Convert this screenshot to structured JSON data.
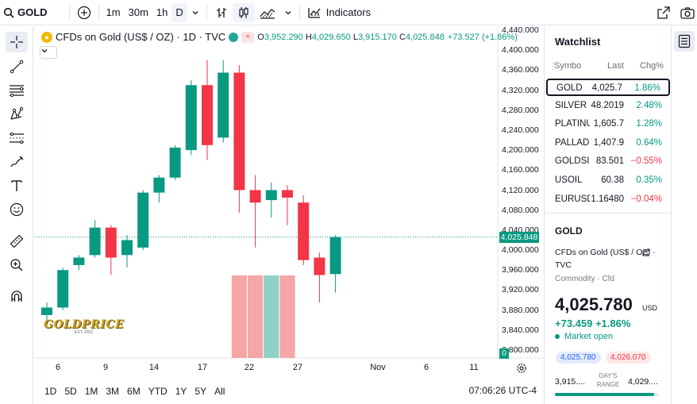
{
  "toolbar": {
    "symbol": "GOLD",
    "intervals": [
      "1m",
      "30m",
      "1h",
      "D"
    ],
    "active_interval": "D",
    "indicators_label": "Indicators"
  },
  "legend": {
    "title": "CFDs on Gold (US$ / OZ) · 1D · TVC",
    "badge_text": "≈",
    "open_label": "O",
    "open": "3,952.290",
    "high_label": "H",
    "high": "4,029.650",
    "low_label": "L",
    "low": "3,915.170",
    "close_label": "C",
    "close": "4,025.848",
    "change": "+73.527 (+1.86%)"
  },
  "price_axis": {
    "labels": [
      "4,440.000",
      "4,400.000",
      "4,360.000",
      "4,320.000",
      "4,280.000",
      "4,240.000",
      "4,200.000",
      "4,160.000",
      "4,120.000",
      "4,080.000",
      "4,040.000",
      "4,000.000",
      "3,960.000",
      "3,920.000",
      "3,880.000",
      "3,840.000",
      "3,800.000"
    ],
    "current_price": "4,025.848",
    "volume_badge": "0"
  },
  "time_axis": {
    "labels": [
      "6",
      "9",
      "14",
      "17",
      "22",
      "27",
      "Nov",
      "6",
      "11"
    ]
  },
  "watermark": {
    "main": "GOLDPRICE",
    "sub": "EST. 2002"
  },
  "bottombar": {
    "ranges": [
      "1D",
      "5D",
      "1M",
      "3M",
      "6M",
      "YTD",
      "1Y",
      "5Y",
      "All"
    ],
    "clock": "07:06:26 UTC-4"
  },
  "watchlist": {
    "title": "Watchlist",
    "col_symbol": "Symbo",
    "col_last": "Last",
    "col_chg": "Chg%",
    "rows": [
      {
        "symbol": "GOLD",
        "last": "4,025.7",
        "chg": "1.86%",
        "dir": "up"
      },
      {
        "symbol": "SILVER",
        "last": "48.2019",
        "chg": "2.48%",
        "dir": "up"
      },
      {
        "symbol": "PLATINUM",
        "last": "1,605.7",
        "chg": "1.28%",
        "dir": "up"
      },
      {
        "symbol": "PALLADIUM",
        "last": "1,407.9",
        "chg": "0.64%",
        "dir": "up"
      },
      {
        "symbol": "GOLDSILVER",
        "last": "83.501",
        "chg": "−0.55%",
        "dir": "dn"
      },
      {
        "symbol": "USOIL",
        "last": "60.38",
        "chg": "0.35%",
        "dir": "up"
      },
      {
        "symbol": "EURUSD",
        "last": "1.16480",
        "chg": "−0.04%",
        "dir": "dn"
      }
    ]
  },
  "details": {
    "symbol": "GOLD",
    "name": "CFDs on Gold (US$ / OZ) · TVC",
    "category": "Commodity · Cfd",
    "price": "4,025.780",
    "currency": "USD",
    "change": "+73.459  +1.86%",
    "market_status": "Market open",
    "bid": "4,025.780",
    "ask": "4,026.070",
    "range_low": "3,915....",
    "range_label": "DAY'S RANGE",
    "range_high": "4,029....",
    "range_position": 0.96
  },
  "colors": {
    "up": "#089981",
    "down": "#f23645",
    "accent": "#2962ff"
  },
  "chart_data": {
    "type": "candlestick",
    "ylim": [
      3780,
      4450
    ],
    "current_price": 4025.848,
    "candles": [
      {
        "o": 3870,
        "h": 3895,
        "l": 3855,
        "c": 3885
      },
      {
        "o": 3885,
        "h": 3965,
        "l": 3880,
        "c": 3960
      },
      {
        "o": 3970,
        "h": 3990,
        "l": 3960,
        "c": 3985
      },
      {
        "o": 3990,
        "h": 4060,
        "l": 3985,
        "c": 4045
      },
      {
        "o": 4045,
        "h": 4050,
        "l": 3950,
        "c": 3985
      },
      {
        "o": 3990,
        "h": 4030,
        "l": 3965,
        "c": 4020
      },
      {
        "o": 4005,
        "h": 4120,
        "l": 4000,
        "c": 4115
      },
      {
        "o": 4115,
        "h": 4150,
        "l": 4095,
        "c": 4145
      },
      {
        "o": 4145,
        "h": 4210,
        "l": 4140,
        "c": 4205
      },
      {
        "o": 4200,
        "h": 4340,
        "l": 4190,
        "c": 4330
      },
      {
        "o": 4330,
        "h": 4380,
        "l": 4180,
        "c": 4210
      },
      {
        "o": 4225,
        "h": 4380,
        "l": 4215,
        "c": 4355
      },
      {
        "o": 4355,
        "h": 4370,
        "l": 4075,
        "c": 4120
      },
      {
        "o": 4120,
        "h": 4150,
        "l": 4005,
        "c": 4095
      },
      {
        "o": 4100,
        "h": 4135,
        "l": 4065,
        "c": 4120
      },
      {
        "o": 4120,
        "h": 4130,
        "l": 4050,
        "c": 4105
      },
      {
        "o": 4095,
        "h": 4110,
        "l": 3970,
        "c": 3980
      },
      {
        "o": 3985,
        "h": 3995,
        "l": 3895,
        "c": 3950
      },
      {
        "o": 3952,
        "h": 4030,
        "l": 3915,
        "c": 4026
      }
    ],
    "volume": [
      {
        "index": 12,
        "value": 1,
        "dir": "dn"
      },
      {
        "index": 13,
        "value": 1,
        "dir": "dn"
      },
      {
        "index": 14,
        "value": 1,
        "dir": "up"
      },
      {
        "index": 15,
        "value": 1,
        "dir": "dn"
      }
    ]
  }
}
